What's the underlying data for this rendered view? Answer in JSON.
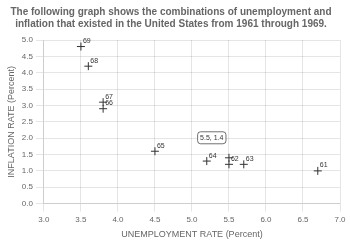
{
  "chart_data": {
    "type": "scatter",
    "title": "The following graph shows the combinations of unemployment and inflation that existed in the United States from 1961 through 1969.",
    "xlabel": "UNEMPLOYMENT RATE (Percent)",
    "ylabel": "INFLATION RATE (Percent)",
    "x": [
      3.5,
      3.6,
      3.8,
      3.8,
      4.5,
      5.2,
      5.5,
      5.7,
      6.7,
      5.5
    ],
    "values": [
      4.8,
      4.2,
      3.1,
      2.9,
      1.6,
      1.3,
      1.2,
      1.2,
      1.0,
      1.4
    ],
    "annotations": [
      {
        "text": "69",
        "x": 3.5,
        "y": 4.8
      },
      {
        "text": "68",
        "x": 3.6,
        "y": 4.2
      },
      {
        "text": "67",
        "x": 3.8,
        "y": 3.1
      },
      {
        "text": "66",
        "x": 3.8,
        "y": 2.9
      },
      {
        "text": "65",
        "x": 4.5,
        "y": 1.6
      },
      {
        "text": "64",
        "x": 5.2,
        "y": 1.3
      },
      {
        "text": "62",
        "x": 5.5,
        "y": 1.2
      },
      {
        "text": "63",
        "x": 5.7,
        "y": 1.2
      },
      {
        "text": "61",
        "x": 6.7,
        "y": 1.0
      }
    ],
    "callout": {
      "text": "5.5, 1.4",
      "x": 5.5,
      "y": 1.4
    },
    "color": "#333333",
    "marker": "cross",
    "grid": true,
    "xlim": [
      3.0,
      7.0
    ],
    "ylim": [
      0,
      5.0
    ],
    "xticks": [
      {
        "value": 3,
        "label": "3.0"
      },
      3.5,
      {
        "value": 4,
        "label": "4.0"
      },
      4.5,
      {
        "value": 5,
        "label": "5.0"
      },
      5.5,
      {
        "value": 6,
        "label": "6.0"
      },
      6.5,
      {
        "value": 7,
        "label": "7.0"
      }
    ],
    "yticks": [
      {
        "value": 0,
        "label": "0.0"
      },
      0.5,
      {
        "value": 1,
        "label": "1.0"
      },
      1.5,
      {
        "value": 2,
        "label": "2.0"
      },
      2.5,
      {
        "value": 3,
        "label": "3.0"
      },
      3.5,
      {
        "value": 4,
        "label": "4.0"
      },
      4.5,
      {
        "value": 5,
        "label": "5.0"
      }
    ]
  }
}
